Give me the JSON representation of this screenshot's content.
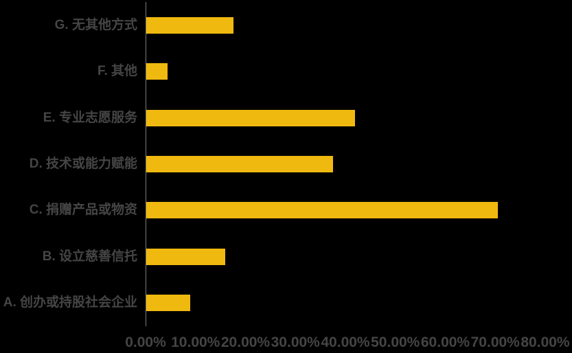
{
  "chart_data": {
    "type": "bar",
    "orientation": "horizontal",
    "title": "",
    "xlabel": "",
    "ylabel": "",
    "order": "top-to-bottom",
    "categories": [
      "G. 无其他方式",
      "F. 其他",
      "E. 专业志愿服务",
      "D. 技术或能力赋能",
      "C. 捐赠产品或物资",
      "B. 设立慈善信托",
      "A. 创办或持股社会企业"
    ],
    "values": [
      17.4,
      4.3,
      41.8,
      37.4,
      70.4,
      15.8,
      8.8
    ],
    "unit": "%",
    "xlim": [
      0,
      80
    ],
    "x_tick_step": 10,
    "x_tick_labels": [
      "0.00%",
      "10.00%",
      "20.00%",
      "30.00%",
      "40.00%",
      "50.00%",
      "60.00%",
      "70.00%",
      "80.00%"
    ],
    "grid": false,
    "legend": false,
    "colors": {
      "bar": "#F0B90F",
      "background": "#000000",
      "text": "#454545",
      "axis_line": "#7A7A7A"
    }
  }
}
